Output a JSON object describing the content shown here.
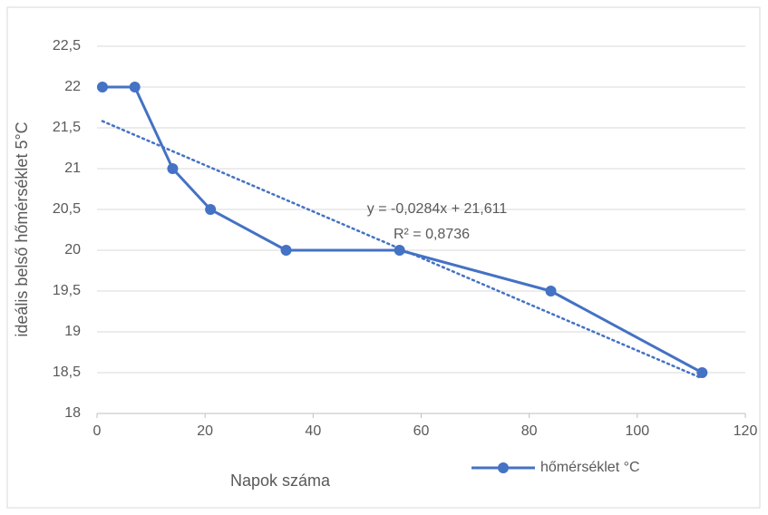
{
  "chart_data": {
    "type": "line",
    "xlabel": "Napok száma",
    "ylabel": "ideális belső hőmérséklet 5°C",
    "x": [
      1,
      7,
      14,
      21,
      35,
      56,
      84,
      112
    ],
    "series": [
      {
        "name": "hőmérséklet °C",
        "color": "#4472c4",
        "values": [
          22,
          22,
          21,
          20.5,
          20,
          20,
          19.5,
          18.5
        ]
      }
    ],
    "xlim": [
      0,
      120
    ],
    "xticks": [
      0,
      20,
      40,
      60,
      80,
      100,
      120
    ],
    "ylim": [
      18,
      22.5
    ],
    "yticks": [
      18,
      {
        "value": 18.5,
        "label": "18,5"
      },
      19,
      {
        "value": 19.5,
        "label": "19,5"
      },
      20,
      {
        "value": 20.5,
        "label": "20,5"
      },
      21,
      {
        "value": 21.5,
        "label": "21,5"
      },
      22,
      {
        "value": 22.5,
        "label": "22,5"
      }
    ],
    "grid": true,
    "legend": "bottom",
    "trendline": {
      "slope": -0.0284,
      "intercept": 21.611,
      "label": "y = -0,0284x + 21,611",
      "r2_label": "R² = 0,8736"
    }
  }
}
